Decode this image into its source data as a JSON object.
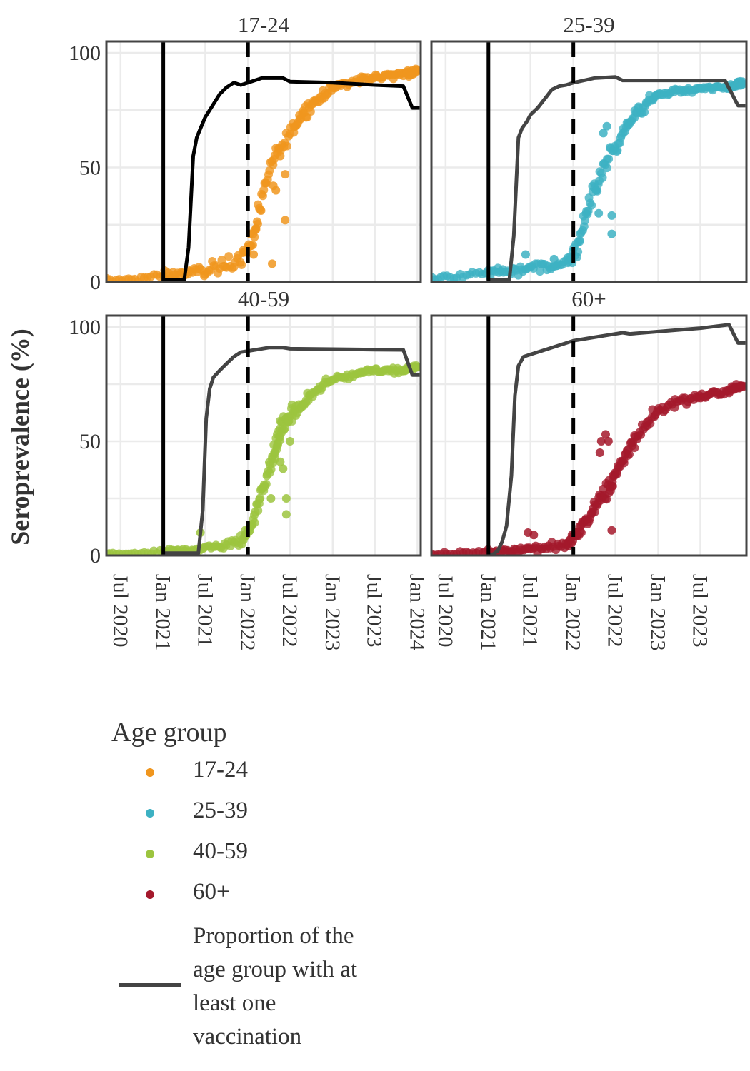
{
  "ylabel": "Seroprevalence (%)",
  "legend": {
    "title": "Age group",
    "items": [
      {
        "label": "17-24",
        "color": "#F0961E"
      },
      {
        "label": "25-39",
        "color": "#3DB1C3"
      },
      {
        "label": "40-59",
        "color": "#9CC43E"
      },
      {
        "label": "60+",
        "color": "#A4192C"
      }
    ],
    "line_label": "Proportion of the age group with at least one vaccination",
    "line_color": "#444444"
  },
  "chart_data": {
    "type": "scatter",
    "x_axis": {
      "type": "date",
      "range": [
        "2020-05-01",
        "2024-01-15"
      ],
      "ticks_left": [
        "2020-07-01",
        "2021-01-01",
        "2021-07-01",
        "2022-01-01",
        "2022-07-01",
        "2023-01-01",
        "2023-07-01",
        "2024-01-01"
      ],
      "tick_labels_left": [
        "Jul 2020",
        "Jan 2021",
        "Jul 2021",
        "Jan 2022",
        "Jul 2022",
        "Jan 2023",
        "Jul 2023",
        "Jan 2024"
      ],
      "ticks_right": [
        "2020-07-01",
        "2021-01-01",
        "2021-07-01",
        "2022-01-01",
        "2022-07-01",
        "2023-01-01",
        "2023-07-01"
      ],
      "tick_labels_right": [
        "Jul 2020",
        "Jan 2021",
        "Jul 2021",
        "Jan 2022",
        "Jul 2022",
        "Jan 2023",
        "Jul 2023"
      ]
    },
    "y_axis": {
      "range": [
        0,
        105
      ],
      "ticks": [
        0,
        50,
        100
      ],
      "tick_labels": [
        "0",
        "50",
        "100"
      ]
    },
    "grid": true,
    "reference_lines": [
      {
        "date": "2021-01-01",
        "style": "solid"
      },
      {
        "date": "2022-01-01",
        "style": "dashed"
      }
    ],
    "panels": [
      {
        "title": "17-24",
        "color": "#F0961E",
        "vaccination": {
          "dates": [
            "2021-01-01",
            "2021-04-01",
            "2021-04-20",
            "2021-05-10",
            "2021-05-25",
            "2021-06-10",
            "2021-07-01",
            "2021-08-01",
            "2021-09-01",
            "2021-10-01",
            "2021-11-01",
            "2021-12-01",
            "2022-01-01",
            "2022-03-01",
            "2022-06-01",
            "2022-07-01",
            "2023-01-01",
            "2023-07-01",
            "2023-11-01",
            "2023-12-10",
            "2024-01-10"
          ],
          "values": [
            1,
            1,
            15,
            55,
            63,
            67,
            72,
            77,
            82,
            85,
            87,
            86,
            87,
            89,
            89,
            87.5,
            87,
            86,
            85.5,
            76,
            76
          ]
        },
        "sero": [
          {
            "x": "2020-05-01",
            "y": 0.4,
            "n": 18,
            "s": 2.2
          },
          {
            "x": "2021-01-01",
            "y": 2.5,
            "n": 26,
            "s": 3.2
          },
          {
            "x": "2021-07-01",
            "y": 5,
            "n": 20,
            "s": 4.2
          },
          {
            "x": "2021-12-01",
            "y": 10,
            "n": 12,
            "s": 5
          },
          {
            "x": "2022-01-20",
            "y": 18,
            "n": 12,
            "s": 6
          },
          {
            "x": "2022-03-01",
            "y": 36,
            "n": 14,
            "s": 5
          },
          {
            "x": "2022-05-01",
            "y": 55,
            "n": 14,
            "s": 5
          },
          {
            "x": "2022-07-15",
            "y": 68,
            "n": 18,
            "s": 4
          },
          {
            "x": "2022-10-01",
            "y": 78,
            "n": 18,
            "s": 3
          },
          {
            "x": "2023-01-01",
            "y": 85,
            "n": 22,
            "s": 2.5
          },
          {
            "x": "2023-06-01",
            "y": 89,
            "n": 24,
            "s": 2
          },
          {
            "x": "2023-11-01",
            "y": 91,
            "n": 20,
            "s": 2
          },
          {
            "x": "2024-01-05",
            "y": 92,
            "n": 8,
            "s": 1.5
          }
        ],
        "outliers": [
          [
            "2022-04-15",
            8
          ],
          [
            "2022-04-20",
            42
          ],
          [
            "2022-05-20",
            55
          ],
          [
            "2022-06-10",
            47
          ],
          [
            "2022-06-10",
            27
          ],
          [
            "2022-05-01",
            40
          ],
          [
            "2022-01-10",
            21
          ],
          [
            "2022-01-25",
            12
          ]
        ]
      },
      {
        "title": "25-39",
        "color": "#3DB1C3",
        "vaccination": {
          "dates": [
            "2021-01-01",
            "2021-04-01",
            "2021-04-20",
            "2021-05-10",
            "2021-05-25",
            "2021-06-15",
            "2021-07-01",
            "2021-08-01",
            "2021-09-01",
            "2021-10-01",
            "2021-11-01",
            "2021-12-01",
            "2022-01-01",
            "2022-04-01",
            "2022-07-01",
            "2022-08-01",
            "2023-01-01",
            "2023-07-01",
            "2023-10-15",
            "2023-12-10",
            "2024-01-10"
          ],
          "values": [
            1,
            1,
            20,
            63,
            67,
            70,
            73,
            76,
            80,
            84,
            85.5,
            86,
            87,
            89,
            89.5,
            88,
            88,
            88,
            88,
            77,
            77
          ]
        },
        "sero": [
          {
            "x": "2020-05-01",
            "y": 1.5,
            "n": 18,
            "s": 2.5
          },
          {
            "x": "2021-01-01",
            "y": 4,
            "n": 24,
            "s": 3.5
          },
          {
            "x": "2021-07-01",
            "y": 6,
            "n": 20,
            "s": 3.5
          },
          {
            "x": "2021-12-01",
            "y": 8,
            "n": 12,
            "s": 5
          },
          {
            "x": "2022-01-20",
            "y": 15,
            "n": 12,
            "s": 6
          },
          {
            "x": "2022-03-01",
            "y": 32,
            "n": 14,
            "s": 6
          },
          {
            "x": "2022-05-01",
            "y": 47,
            "n": 16,
            "s": 6
          },
          {
            "x": "2022-07-15",
            "y": 62,
            "n": 18,
            "s": 4
          },
          {
            "x": "2022-10-01",
            "y": 74,
            "n": 18,
            "s": 3
          },
          {
            "x": "2023-01-01",
            "y": 82,
            "n": 22,
            "s": 2
          },
          {
            "x": "2023-06-01",
            "y": 84,
            "n": 24,
            "s": 1.5
          },
          {
            "x": "2023-11-01",
            "y": 85,
            "n": 20,
            "s": 1.5
          },
          {
            "x": "2024-01-05",
            "y": 87,
            "n": 8,
            "s": 1.5
          }
        ],
        "outliers": [
          [
            "2021-06-10",
            12
          ],
          [
            "2021-10-10",
            10
          ],
          [
            "2022-06-15",
            29
          ],
          [
            "2022-06-15",
            21
          ],
          [
            "2022-04-10",
            40
          ],
          [
            "2022-05-10",
            65
          ],
          [
            "2022-05-25",
            68
          ],
          [
            "2022-04-20",
            30
          ]
        ]
      },
      {
        "title": "40-59",
        "color": "#9CC43E",
        "vaccination": {
          "dates": [
            "2021-01-01",
            "2021-06-01",
            "2021-06-20",
            "2021-07-05",
            "2021-07-20",
            "2021-08-05",
            "2021-09-01",
            "2021-10-01",
            "2021-11-01",
            "2021-12-01",
            "2022-01-01",
            "2022-04-01",
            "2022-06-01",
            "2022-07-01",
            "2023-01-01",
            "2023-07-01",
            "2023-11-01",
            "2023-12-10",
            "2024-01-10"
          ],
          "values": [
            1,
            1,
            20,
            60,
            73,
            78,
            81,
            84,
            87,
            89,
            89.5,
            91,
            91,
            90.5,
            90.3,
            90.1,
            90,
            79,
            79
          ]
        },
        "sero": [
          {
            "x": "2020-05-01",
            "y": 0.5,
            "n": 18,
            "s": 1.2
          },
          {
            "x": "2021-01-01",
            "y": 1.5,
            "n": 26,
            "s": 1.5
          },
          {
            "x": "2021-07-01",
            "y": 3,
            "n": 20,
            "s": 2.5
          },
          {
            "x": "2021-12-01",
            "y": 6,
            "n": 14,
            "s": 4
          },
          {
            "x": "2022-01-20",
            "y": 14,
            "n": 12,
            "s": 5
          },
          {
            "x": "2022-03-01",
            "y": 28,
            "n": 16,
            "s": 6
          },
          {
            "x": "2022-04-20",
            "y": 42,
            "n": 22,
            "s": 8
          },
          {
            "x": "2022-06-01",
            "y": 58,
            "n": 20,
            "s": 6
          },
          {
            "x": "2022-08-01",
            "y": 64,
            "n": 14,
            "s": 4
          },
          {
            "x": "2022-10-01",
            "y": 70,
            "n": 16,
            "s": 3
          },
          {
            "x": "2023-01-01",
            "y": 77,
            "n": 22,
            "s": 2
          },
          {
            "x": "2023-06-01",
            "y": 81,
            "n": 24,
            "s": 1.5
          },
          {
            "x": "2023-11-01",
            "y": 81,
            "n": 20,
            "s": 1.5
          },
          {
            "x": "2024-01-05",
            "y": 83,
            "n": 8,
            "s": 1.5
          }
        ],
        "outliers": [
          [
            "2022-06-15",
            18
          ],
          [
            "2022-06-15",
            25
          ],
          [
            "2022-06-01",
            38
          ],
          [
            "2022-05-20",
            41
          ],
          [
            "2022-07-01",
            50
          ],
          [
            "2021-06-10",
            10
          ],
          [
            "2022-04-10",
            25
          ]
        ]
      },
      {
        "title": "60+",
        "color": "#A4192C",
        "vaccination": {
          "dates": [
            "2021-01-01",
            "2021-01-20",
            "2021-02-10",
            "2021-03-01",
            "2021-03-20",
            "2021-04-10",
            "2021-04-25",
            "2021-05-10",
            "2021-06-01",
            "2021-07-01",
            "2021-09-01",
            "2021-11-01",
            "2022-01-01",
            "2022-04-01",
            "2022-06-01",
            "2022-08-01",
            "2022-09-01",
            "2023-01-01",
            "2023-07-01",
            "2023-11-01",
            "2023-12-10",
            "2024-01-10"
          ],
          "values": [
            0.5,
            0.5,
            2,
            6,
            13,
            35,
            70,
            83,
            87,
            88,
            90,
            92,
            94,
            95.5,
            96.5,
            97.5,
            97,
            98,
            99.5,
            101,
            93,
            93
          ]
        },
        "sero": [
          {
            "x": "2020-05-01",
            "y": 0.8,
            "n": 18,
            "s": 1.2
          },
          {
            "x": "2021-01-01",
            "y": 1.5,
            "n": 26,
            "s": 1.8
          },
          {
            "x": "2021-07-01",
            "y": 3,
            "n": 20,
            "s": 3
          },
          {
            "x": "2021-12-01",
            "y": 5,
            "n": 14,
            "s": 4.5
          },
          {
            "x": "2022-01-20",
            "y": 9,
            "n": 12,
            "s": 5
          },
          {
            "x": "2022-03-01",
            "y": 16,
            "n": 16,
            "s": 5
          },
          {
            "x": "2022-05-01",
            "y": 25,
            "n": 22,
            "s": 7
          },
          {
            "x": "2022-07-15",
            "y": 38,
            "n": 20,
            "s": 5
          },
          {
            "x": "2022-10-01",
            "y": 52,
            "n": 16,
            "s": 4
          },
          {
            "x": "2023-01-01",
            "y": 64,
            "n": 20,
            "s": 3
          },
          {
            "x": "2023-06-01",
            "y": 69,
            "n": 24,
            "s": 2
          },
          {
            "x": "2023-11-01",
            "y": 72,
            "n": 20,
            "s": 2
          },
          {
            "x": "2024-01-05",
            "y": 75,
            "n": 8,
            "s": 1.5
          }
        ],
        "outliers": [
          [
            "2022-06-15",
            11
          ],
          [
            "2022-06-20",
            35
          ],
          [
            "2022-05-20",
            53
          ],
          [
            "2022-05-01",
            50
          ],
          [
            "2022-04-25",
            45
          ],
          [
            "2021-07-15",
            9
          ],
          [
            "2021-06-20",
            10
          ],
          [
            "2022-06-01",
            50
          ]
        ]
      }
    ]
  }
}
